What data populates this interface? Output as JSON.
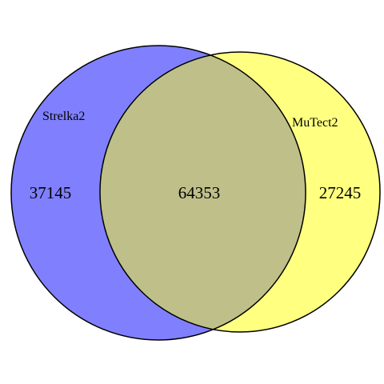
{
  "venn": {
    "sets": [
      {
        "name": "Strelka2",
        "color": "#8080ff"
      },
      {
        "name": "MuTect2",
        "color": "#ffff80"
      }
    ],
    "overlap_color": "#bfbf8a",
    "outline_color": "#000000",
    "counts": {
      "strelka2_only": "37145",
      "both": "64353",
      "mutect2_only": "27245"
    }
  }
}
